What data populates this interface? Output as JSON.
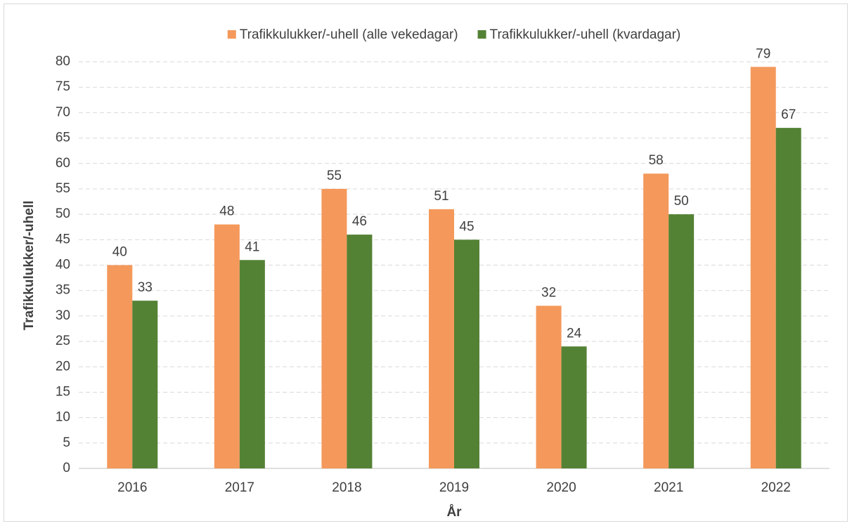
{
  "chart_data": {
    "type": "bar",
    "y_label": "Trafikkulukker/-uhell",
    "x_label": "År",
    "categories": [
      "2016",
      "2017",
      "2018",
      "2019",
      "2020",
      "2021",
      "2022"
    ],
    "series": [
      {
        "name": "Trafikkulukker/-uhell (alle vekedagar)",
        "color": "#f4995b",
        "values": [
          40,
          48,
          55,
          51,
          32,
          58,
          79
        ]
      },
      {
        "name": "Trafikkulukker/-uhell (kvardagar)",
        "color": "#548235",
        "values": [
          33,
          41,
          46,
          45,
          24,
          50,
          67
        ]
      }
    ],
    "ylim": [
      0,
      80
    ],
    "yticks": [
      0,
      5,
      10,
      15,
      20,
      25,
      30,
      35,
      40,
      45,
      50,
      55,
      60,
      65,
      70,
      75,
      80
    ],
    "grid": true,
    "legend": "top"
  }
}
